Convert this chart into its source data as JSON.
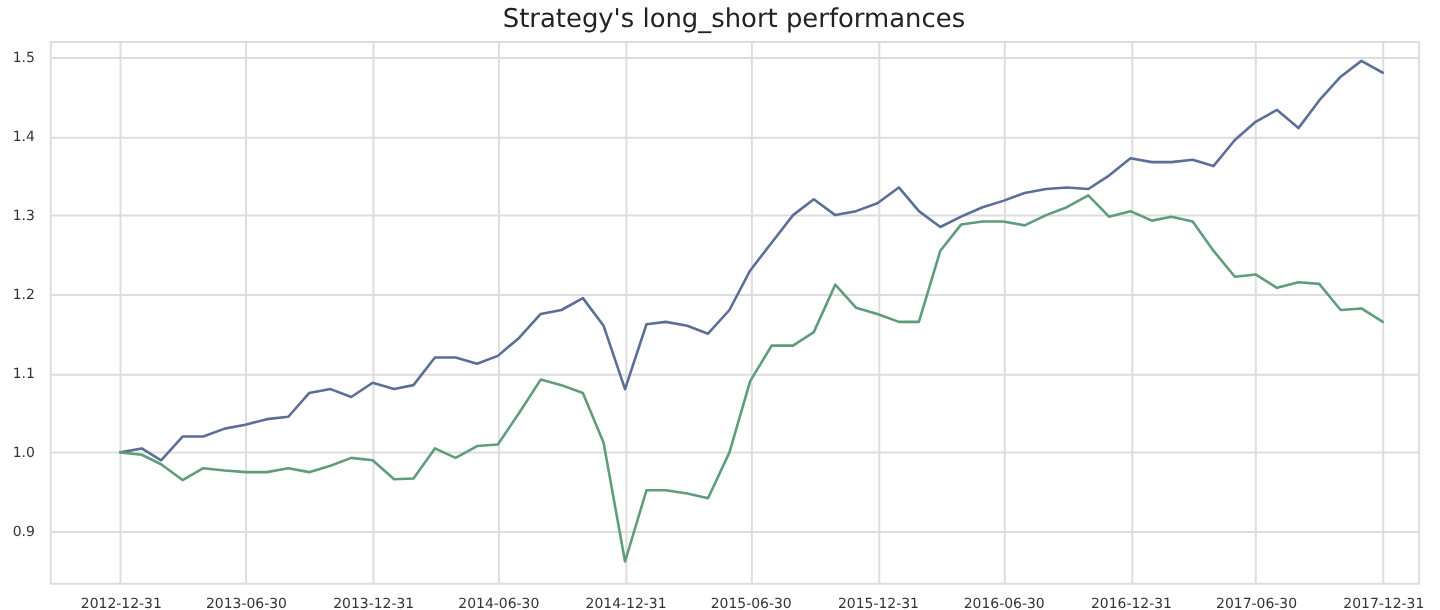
{
  "chart_data": {
    "type": "line",
    "title": "Strategy's long_short performances",
    "x": [
      "2012-12-31",
      "2013-01-31",
      "2013-02-28",
      "2013-03-31",
      "2013-04-30",
      "2013-05-31",
      "2013-06-30",
      "2013-07-31",
      "2013-08-31",
      "2013-09-30",
      "2013-10-31",
      "2013-11-30",
      "2013-12-31",
      "2014-01-31",
      "2014-02-28",
      "2014-03-31",
      "2014-04-30",
      "2014-05-31",
      "2014-06-30",
      "2014-07-31",
      "2014-08-31",
      "2014-09-30",
      "2014-10-31",
      "2014-11-30",
      "2014-12-31",
      "2015-01-31",
      "2015-02-28",
      "2015-03-31",
      "2015-04-30",
      "2015-05-31",
      "2015-06-30",
      "2015-07-31",
      "2015-08-31",
      "2015-09-30",
      "2015-10-31",
      "2015-11-30",
      "2015-12-31",
      "2016-01-31",
      "2016-02-29",
      "2016-03-31",
      "2016-04-30",
      "2016-05-31",
      "2016-06-30",
      "2016-07-31",
      "2016-08-31",
      "2016-09-30",
      "2016-10-31",
      "2016-11-30",
      "2016-12-31",
      "2017-01-31",
      "2017-02-28",
      "2017-03-31",
      "2017-04-30",
      "2017-05-31",
      "2017-06-30",
      "2017-07-31",
      "2017-08-31",
      "2017-09-30",
      "2017-10-31",
      "2017-11-30",
      "2017-12-31"
    ],
    "series": [
      {
        "color": "#5b6e96",
        "values": [
          1.0,
          1.005,
          0.99,
          1.02,
          1.02,
          1.03,
          1.035,
          1.042,
          1.045,
          1.075,
          1.08,
          1.07,
          1.088,
          1.08,
          1.085,
          1.12,
          1.12,
          1.112,
          1.122,
          1.145,
          1.175,
          1.18,
          1.195,
          1.16,
          1.08,
          1.162,
          1.165,
          1.16,
          1.15,
          1.18,
          1.23,
          1.265,
          1.3,
          1.32,
          1.3,
          1.305,
          1.315,
          1.335,
          1.305,
          1.285,
          1.298,
          1.31,
          1.318,
          1.328,
          1.333,
          1.335,
          1.333,
          1.35,
          1.372,
          1.367,
          1.367,
          1.37,
          1.362,
          1.395,
          1.418,
          1.433,
          1.41,
          1.445,
          1.475,
          1.495,
          1.48
        ]
      },
      {
        "color": "#5e9c7a",
        "values": [
          1.0,
          0.997,
          0.985,
          0.965,
          0.98,
          0.977,
          0.975,
          0.975,
          0.98,
          0.975,
          0.983,
          0.993,
          0.99,
          0.966,
          0.967,
          1.005,
          0.993,
          1.008,
          1.01,
          1.05,
          1.092,
          1.085,
          1.075,
          1.012,
          0.862,
          0.952,
          0.952,
          0.948,
          0.942,
          1.0,
          1.09,
          1.135,
          1.135,
          1.152,
          1.212,
          1.183,
          1.175,
          1.165,
          1.165,
          1.255,
          1.288,
          1.292,
          1.292,
          1.287,
          1.3,
          1.31,
          1.325,
          1.298,
          1.305,
          1.293,
          1.298,
          1.292,
          1.255,
          1.222,
          1.225,
          1.208,
          1.215,
          1.213,
          1.18,
          1.182,
          1.165
        ]
      }
    ],
    "xlim": [
      "2012-09-20",
      "2018-02-20"
    ],
    "xticks": [
      "2012-12-31",
      "2013-06-30",
      "2013-12-31",
      "2014-06-30",
      "2014-12-31",
      "2015-06-30",
      "2015-12-31",
      "2016-06-30",
      "2016-12-31",
      "2017-06-30",
      "2017-12-31"
    ],
    "ylim": [
      0.835,
      1.52
    ],
    "yticks": [
      {
        "value": 0.9,
        "label": "0.9"
      },
      {
        "value": 1.0,
        "label": "1.0"
      },
      {
        "value": 1.1,
        "label": "1.1"
      },
      {
        "value": 1.2,
        "label": "1.2"
      },
      {
        "value": 1.3,
        "label": "1.3"
      },
      {
        "value": 1.4,
        "label": "1.4"
      },
      {
        "value": 1.5,
        "label": "1.5"
      }
    ],
    "grid": true,
    "line_style": "solid",
    "marker": "none"
  }
}
